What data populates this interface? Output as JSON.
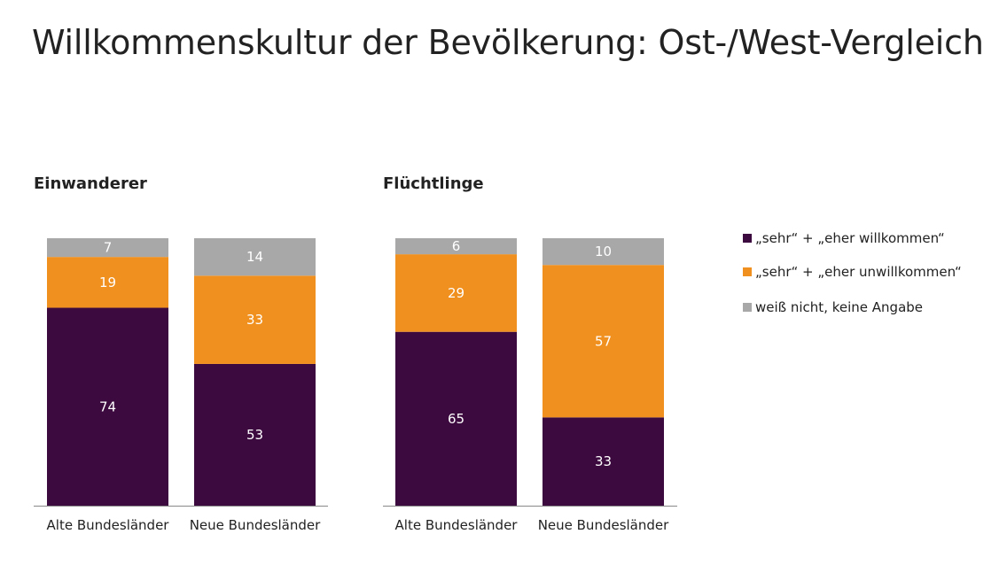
{
  "title": "Willkommenskultur der Bevölkerung: Ost-/West-Vergleich",
  "colors": {
    "willkommen": "#3d0a3f",
    "unwillkommen": "#f0901e",
    "keine_angabe": "#a8a8a8",
    "axis": "#888888"
  },
  "chart_data": {
    "type": "bar",
    "stacked": true,
    "ylim": [
      0,
      100
    ],
    "legend_position": "right",
    "series_names": [
      "„sehr“ + „eher willkommen“",
      "„sehr“ + „eher unwillkommen“",
      "weiß nicht, keine Angabe"
    ],
    "panels": [
      {
        "title": "Einwanderer",
        "categories": [
          "Alte Bundesländer",
          "Neue Bundesländer"
        ],
        "series": [
          {
            "name": "„sehr“ + „eher willkommen“",
            "values": [
              74,
              53
            ]
          },
          {
            "name": "„sehr“ + „eher unwillkommen“",
            "values": [
              19,
              33
            ]
          },
          {
            "name": "weiß nicht, keine Angabe",
            "values": [
              7,
              14
            ]
          }
        ]
      },
      {
        "title": "Flüchtlinge",
        "categories": [
          "Alte Bundesländer",
          "Neue Bundesländer"
        ],
        "series": [
          {
            "name": "„sehr“ + „eher willkommen“",
            "values": [
              65,
              33
            ]
          },
          {
            "name": "„sehr“ + „eher unwillkommen“",
            "values": [
              29,
              57
            ]
          },
          {
            "name": "weiß nicht, keine Angabe",
            "values": [
              6,
              10
            ]
          }
        ]
      }
    ]
  }
}
